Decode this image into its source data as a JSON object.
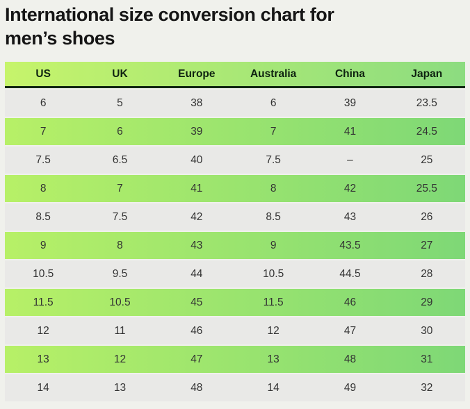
{
  "page": {
    "title": "International size conversion chart for men’s shoes",
    "title_lines": [
      "International size conversion chart for",
      "men’s shoes"
    ]
  },
  "chart_data": {
    "type": "table",
    "title": "International size conversion chart for men’s shoes",
    "columns": [
      "US",
      "UK",
      "Europe",
      "Australia",
      "China",
      "Japan"
    ],
    "rows": [
      [
        "6",
        "5",
        "38",
        "6",
        "39",
        "23.5"
      ],
      [
        "7",
        "6",
        "39",
        "7",
        "41",
        "24.5"
      ],
      [
        "7.5",
        "6.5",
        "40",
        "7.5",
        "–",
        "25"
      ],
      [
        "8",
        "7",
        "41",
        "8",
        "42",
        "25.5"
      ],
      [
        "8.5",
        "7.5",
        "42",
        "8.5",
        "43",
        "26"
      ],
      [
        "9",
        "8",
        "43",
        "9",
        "43.5",
        "27"
      ],
      [
        "10.5",
        "9.5",
        "44",
        "10.5",
        "44.5",
        "28"
      ],
      [
        "11.5",
        "10.5",
        "45",
        "11.5",
        "46",
        "29"
      ],
      [
        "12",
        "11",
        "46",
        "12",
        "47",
        "30"
      ],
      [
        "13",
        "12",
        "47",
        "13",
        "48",
        "31"
      ],
      [
        "14",
        "13",
        "48",
        "14",
        "49",
        "32"
      ]
    ],
    "row_striping": "alternating: gray, green-gradient, starting with gray",
    "layout_hints": {
      "legend": "none",
      "grid": "horizontal row bands only, no vertical separators"
    },
    "colors": {
      "page_bg": "#f0f1ec",
      "title_text": "#161616",
      "header_grad_start": "#c6f46b",
      "header_grad_end": "#8cdc80",
      "header_text": "#0e2210",
      "header_rule": "#102611",
      "gray_row": "#e9e9e7",
      "green_row_start": "#b7f067",
      "green_row_end": "#7ed876",
      "cell_text": "#333333"
    }
  }
}
